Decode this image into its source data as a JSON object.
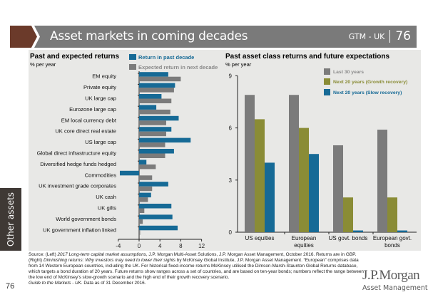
{
  "header": {
    "title": "Asset markets in coming decades",
    "section": "GTM - UK",
    "page": "76"
  },
  "side_tab": {
    "label": "Other assets"
  },
  "page_number": "76",
  "colors": {
    "brand_brown": "#6b3a2a",
    "header_gray": "#7a7a7a",
    "panel_bg": "#e8e8e6",
    "blue": "#166a96",
    "gray": "#7b7b7b",
    "olive": "#8a8c36"
  },
  "chart_data": [
    {
      "type": "bar",
      "orientation": "horizontal",
      "title": "Past and expected returns",
      "subtitle": "% per year",
      "xlabel": "",
      "ylabel": "",
      "xlim": [
        -4,
        12
      ],
      "xticks": [
        "-4",
        "0",
        "4",
        "8",
        "12"
      ],
      "grid": false,
      "legend_position": "top-right",
      "categories": [
        "EM equity",
        "Private equity",
        "UK large cap",
        "Eurozone large cap",
        "EM local currency debt",
        "UK core direct real estate",
        "US large cap",
        "Global direct infrastructure equity",
        "Diversified hedge funds hedged",
        "Commodities",
        "UK investment grade corporates",
        "UK cash",
        "UK gilts",
        "World government bonds",
        "UK government inflation linked"
      ],
      "series": [
        {
          "name": "Return in past decade",
          "color": "#166a96",
          "values": [
            5.6,
            6.9,
            4.3,
            3.3,
            7.6,
            6.2,
            9.9,
            6.7,
            1.4,
            -3.7,
            5.6,
            2.3,
            6.2,
            6.4,
            7.4
          ]
        },
        {
          "name": "Expected return in next decade",
          "color": "#7b7b7b",
          "values": [
            8.0,
            6.7,
            6.2,
            6.0,
            5.2,
            5.2,
            5.0,
            5.0,
            3.2,
            2.5,
            2.5,
            1.7,
            1.0,
            0.7,
            0.2
          ]
        }
      ]
    },
    {
      "type": "bar",
      "orientation": "vertical",
      "title": "Past asset class returns and future expectations",
      "subtitle": "% per year",
      "xlabel": "",
      "ylabel": "",
      "ylim": [
        0,
        9
      ],
      "yticks": [
        "0",
        "3",
        "6",
        "9"
      ],
      "grid": false,
      "legend_position": "top-right",
      "categories": [
        "US equities",
        "European equities",
        "US govt. bonds",
        "European govt. bonds"
      ],
      "category_lines": [
        [
          "US equities"
        ],
        [
          "European",
          "equities"
        ],
        [
          "US govt. bonds"
        ],
        [
          "European govt.",
          "bonds"
        ]
      ],
      "series": [
        {
          "name": "Last 30 years",
          "color": "#7b7b7b",
          "values": [
            7.9,
            7.9,
            5.0,
            5.9
          ]
        },
        {
          "name": "Next 20 years (Growth recovery)",
          "color": "#8a8c36",
          "values": [
            6.5,
            6.0,
            2.0,
            2.0
          ]
        },
        {
          "name": "Next 20  years (Slow recovery)",
          "color": "#166a96",
          "values": [
            4.0,
            4.5,
            0.1,
            0.1
          ]
        }
      ]
    }
  ],
  "footnote": {
    "lines": [
      [
        {
          "t": "Source: (Left) ",
          "i": false
        },
        {
          "t": "2017 Long-term capital market assumptions",
          "i": true
        },
        {
          "t": ", J.P. Morgan Multi-Asset Solutions, J.P. Morgan Asset Management, October 2016. Returns are in GBP.",
          "i": false
        }
      ],
      [
        {
          "t": " (Right) ",
          "i": false
        },
        {
          "t": "Diminishing returns: Why investors may need to lower their sights",
          "i": true
        },
        {
          "t": " by McKinsey Global Institute, J.P. Morgan Asset Management. “European” comprises data",
          "i": false
        }
      ],
      [
        {
          "t": "from 14 Western European countries, including the UK. For historical fixed-income returns McKinsey utilised the Dimson-Marsh-Staunton Global Returns database,",
          "i": false
        }
      ],
      [
        {
          "t": "which targets a bond duration of 20 years. Future returns show ranges across a set of countries, and are based on ten-year bonds; numbers reflect the range between",
          "i": false
        }
      ],
      [
        {
          "t": "the low end of McKinsey’s slow-growth scenario and the high end of their growth recovery scenario.",
          "i": false
        }
      ],
      [
        {
          "t": "Guide to the Markets - UK.",
          "i": true
        },
        {
          "t": " Data as of 31 December 2016.",
          "i": false
        }
      ]
    ]
  },
  "logo": {
    "brand": "J.P.Morgan",
    "sub": "Asset Management"
  }
}
